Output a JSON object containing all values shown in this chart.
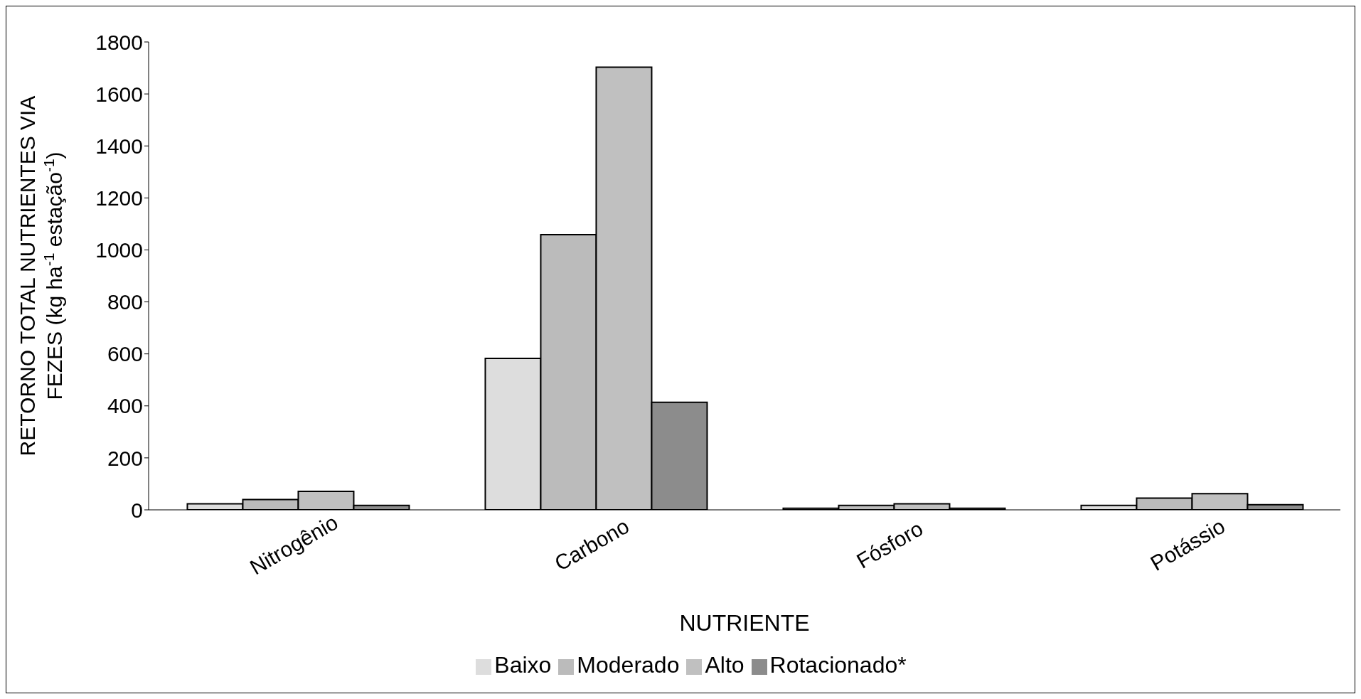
{
  "chart_data": {
    "type": "bar",
    "xlabel": "NUTRIENTE",
    "ylabel": "RETORNO TOTAL NUTRIENTES VIA\nFEZES   (kg ha$^{-1}$ estação$^{-1}$)",
    "categories": [
      "Nitrogênio",
      "Carbono",
      "Fósforo",
      "Potássio"
    ],
    "series": [
      {
        "name": "Baixo",
        "color": "#dddddd",
        "values": [
          23,
          583,
          6,
          17
        ]
      },
      {
        "name": "Moderado",
        "color": "#bbbbbb",
        "values": [
          40,
          1059,
          17,
          45
        ]
      },
      {
        "name": "Alto",
        "color": "#c0c0c0",
        "values": [
          71,
          1703,
          23,
          62
        ]
      },
      {
        "name": "Rotacionado*",
        "color": "#8c8c8c",
        "values": [
          17,
          414,
          6,
          20
        ]
      }
    ],
    "ylim": [
      0,
      1800
    ],
    "yticks": [
      0,
      200,
      400,
      600,
      800,
      1000,
      1200,
      1400,
      1600,
      1800
    ],
    "grid": false,
    "legend": "bottom"
  }
}
